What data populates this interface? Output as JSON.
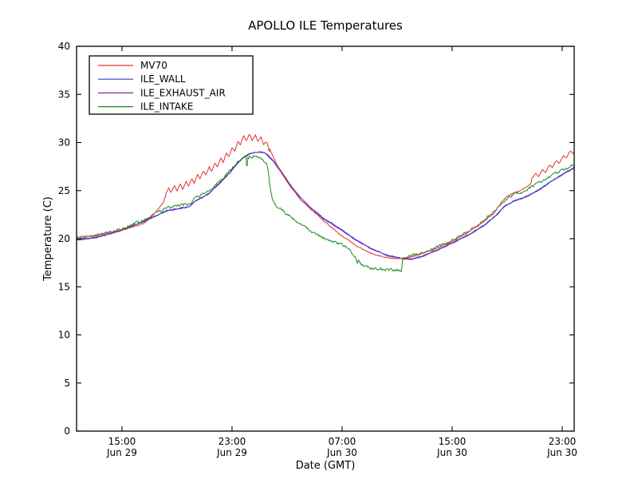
{
  "chart_data": {
    "type": "line",
    "title": "APOLLO ILE Temperatures",
    "xlabel": "Date (GMT)",
    "ylabel": "Temperature (C)",
    "grid": false,
    "legend_position": "upper-left",
    "y_axis": {
      "lim": [
        0,
        40
      ],
      "ticks": [
        0,
        5,
        10,
        15,
        20,
        25,
        30,
        35,
        40
      ]
    },
    "x_axis": {
      "unit": "hours_since_jun29_0000_gmt",
      "lim": [
        11.7,
        47.87
      ],
      "ticks": [
        {
          "t": 15,
          "time": "15:00",
          "date": "Jun 29"
        },
        {
          "t": 23,
          "time": "23:00",
          "date": "Jun 29"
        },
        {
          "t": 31,
          "time": "07:00",
          "date": "Jun 30"
        },
        {
          "t": 39,
          "time": "15:00",
          "date": "Jun 30"
        },
        {
          "t": 47,
          "time": "23:00",
          "date": "Jun 30"
        }
      ]
    },
    "legend": [
      {
        "name": "MV70",
        "color": "#e03030"
      },
      {
        "name": "ILE_WALL",
        "color": "#3b3bdc"
      },
      {
        "name": "ILE_EXHAUST_AIR",
        "color": "#7a2e9a"
      },
      {
        "name": "ILE_INTAKE",
        "color": "#1f8a1f"
      }
    ],
    "series": [
      {
        "name": "MV70",
        "color": "#e03030",
        "z": 4,
        "noise": 0.05,
        "seed": 101,
        "sawtooth": [
          {
            "from": 18.15,
            "to": 25.75,
            "amp": 0.33,
            "period": 0.42
          },
          {
            "from": 44.78,
            "to": 47.87,
            "amp": 0.26,
            "period": 0.5
          }
        ],
        "keypoints": [
          [
            11.7,
            20.15
          ],
          [
            13.1,
            20.4
          ],
          [
            14.8,
            20.85
          ],
          [
            15.8,
            21.2
          ],
          [
            16.6,
            21.6
          ],
          [
            17.1,
            22.2
          ],
          [
            17.7,
            23.2
          ],
          [
            18.05,
            23.9
          ],
          [
            18.2,
            24.9
          ],
          [
            19.3,
            25.4
          ],
          [
            20.0,
            25.9
          ],
          [
            21.0,
            26.8
          ],
          [
            21.9,
            27.7
          ],
          [
            22.6,
            28.6
          ],
          [
            23.1,
            29.3
          ],
          [
            23.5,
            29.9
          ],
          [
            23.85,
            30.4
          ],
          [
            24.25,
            30.6
          ],
          [
            24.7,
            30.5
          ],
          [
            25.1,
            30.3
          ],
          [
            25.45,
            29.9
          ],
          [
            25.75,
            29.3
          ],
          [
            26.1,
            28.1
          ],
          [
            26.7,
            26.7
          ],
          [
            27.3,
            25.4
          ],
          [
            28.0,
            24.1
          ],
          [
            28.9,
            22.9
          ],
          [
            29.8,
            21.7
          ],
          [
            30.9,
            20.4
          ],
          [
            31.9,
            19.4
          ],
          [
            32.9,
            18.6
          ],
          [
            33.7,
            18.2
          ],
          [
            34.5,
            18.0
          ],
          [
            35.3,
            17.95
          ],
          [
            35.8,
            18.05
          ],
          [
            36.6,
            18.35
          ],
          [
            37.5,
            18.8
          ],
          [
            38.5,
            19.4
          ],
          [
            39.4,
            20.0
          ],
          [
            40.3,
            20.8
          ],
          [
            41.2,
            21.7
          ],
          [
            42.0,
            22.6
          ],
          [
            42.6,
            23.8
          ],
          [
            43.0,
            24.4
          ],
          [
            43.6,
            24.8
          ],
          [
            44.2,
            25.2
          ],
          [
            44.55,
            25.55
          ],
          [
            44.74,
            25.7
          ],
          [
            44.8,
            26.45
          ],
          [
            45.2,
            26.65
          ],
          [
            45.8,
            27.15
          ],
          [
            46.4,
            27.75
          ],
          [
            47.0,
            28.3
          ],
          [
            47.5,
            28.8
          ],
          [
            47.87,
            29.2
          ]
        ]
      },
      {
        "name": "ILE_WALL",
        "color": "#3b3bdc",
        "z": 2,
        "noise": 0.03,
        "seed": 202,
        "sawtooth": [],
        "keypoints": [
          [
            11.7,
            19.9
          ],
          [
            13.1,
            20.15
          ],
          [
            14.8,
            20.8
          ],
          [
            16.6,
            21.85
          ],
          [
            18.3,
            22.95
          ],
          [
            19.0,
            23.1
          ],
          [
            19.9,
            23.35
          ],
          [
            20.3,
            23.9
          ],
          [
            21.3,
            24.7
          ],
          [
            22.1,
            25.8
          ],
          [
            22.85,
            26.9
          ],
          [
            23.4,
            27.9
          ],
          [
            23.85,
            28.5
          ],
          [
            24.25,
            28.85
          ],
          [
            24.7,
            29.0
          ],
          [
            25.1,
            29.05
          ],
          [
            25.45,
            28.9
          ],
          [
            25.95,
            28.2
          ],
          [
            26.55,
            27.1
          ],
          [
            27.15,
            25.8
          ],
          [
            27.9,
            24.4
          ],
          [
            28.75,
            23.2
          ],
          [
            29.6,
            22.2
          ],
          [
            30.8,
            21.1
          ],
          [
            31.9,
            20.0
          ],
          [
            33.1,
            19.0
          ],
          [
            34.25,
            18.3
          ],
          [
            35.4,
            17.95
          ],
          [
            36.1,
            17.9
          ],
          [
            36.9,
            18.25
          ],
          [
            38.1,
            18.95
          ],
          [
            39.25,
            19.75
          ],
          [
            40.4,
            20.6
          ],
          [
            41.4,
            21.5
          ],
          [
            42.3,
            22.6
          ],
          [
            42.8,
            23.4
          ],
          [
            43.5,
            23.95
          ],
          [
            44.1,
            24.25
          ],
          [
            44.6,
            24.55
          ],
          [
            45.3,
            25.1
          ],
          [
            46.15,
            25.95
          ],
          [
            47.0,
            26.7
          ],
          [
            47.87,
            27.4
          ]
        ]
      },
      {
        "name": "ILE_EXHAUST_AIR",
        "color": "#7a2e9a",
        "z": 1,
        "noise": 0.03,
        "seed": 303,
        "sawtooth": [],
        "keypoints": [
          [
            11.7,
            19.84
          ],
          [
            13.1,
            20.09
          ],
          [
            14.8,
            20.74
          ],
          [
            16.6,
            21.79
          ],
          [
            18.3,
            22.89
          ],
          [
            19.9,
            23.29
          ],
          [
            20.3,
            23.84
          ],
          [
            21.3,
            24.64
          ],
          [
            22.1,
            25.74
          ],
          [
            22.85,
            26.84
          ],
          [
            23.4,
            27.84
          ],
          [
            23.85,
            28.44
          ],
          [
            24.25,
            28.79
          ],
          [
            24.7,
            28.94
          ],
          [
            25.1,
            28.99
          ],
          [
            25.45,
            28.84
          ],
          [
            25.95,
            28.12
          ],
          [
            26.55,
            26.95
          ],
          [
            27.15,
            25.62
          ],
          [
            27.9,
            24.22
          ],
          [
            28.75,
            23.05
          ],
          [
            29.6,
            22.1
          ],
          [
            30.8,
            21.02
          ],
          [
            31.9,
            19.93
          ],
          [
            33.1,
            18.94
          ],
          [
            34.25,
            18.24
          ],
          [
            35.4,
            17.89
          ],
          [
            36.1,
            17.84
          ],
          [
            36.9,
            18.19
          ],
          [
            38.1,
            18.89
          ],
          [
            39.25,
            19.69
          ],
          [
            40.4,
            20.54
          ],
          [
            41.4,
            21.44
          ],
          [
            42.3,
            22.54
          ],
          [
            42.8,
            23.34
          ],
          [
            43.5,
            23.89
          ],
          [
            44.1,
            24.19
          ],
          [
            44.6,
            24.49
          ],
          [
            45.3,
            25.04
          ],
          [
            46.15,
            25.89
          ],
          [
            47.0,
            26.64
          ],
          [
            47.87,
            27.34
          ]
        ]
      },
      {
        "name": "ILE_INTAKE",
        "color": "#1f8a1f",
        "z": 3,
        "noise": 0.12,
        "seed": 404,
        "sawtooth": [],
        "keypoints": [
          [
            11.7,
            20.0
          ],
          [
            13.1,
            20.3
          ],
          [
            14.8,
            20.9
          ],
          [
            16.6,
            22.0
          ],
          [
            18.3,
            23.25
          ],
          [
            19.9,
            23.6
          ],
          [
            20.3,
            24.15
          ],
          [
            21.3,
            24.9
          ],
          [
            22.15,
            26.0
          ],
          [
            22.85,
            27.1
          ],
          [
            23.35,
            27.9
          ],
          [
            23.75,
            28.35
          ],
          [
            23.95,
            28.5
          ],
          [
            24.02,
            28.45
          ],
          [
            24.08,
            26.9
          ],
          [
            24.14,
            28.4
          ],
          [
            24.6,
            28.6
          ],
          [
            25.0,
            28.45
          ],
          [
            25.3,
            28.1
          ],
          [
            25.5,
            27.85
          ],
          [
            25.6,
            27.4
          ],
          [
            25.75,
            25.6
          ],
          [
            25.95,
            23.95
          ],
          [
            26.2,
            23.45
          ],
          [
            26.5,
            23.05
          ],
          [
            26.8,
            22.75
          ],
          [
            27.4,
            22.05
          ],
          [
            28.1,
            21.35
          ],
          [
            28.9,
            20.65
          ],
          [
            29.8,
            20.0
          ],
          [
            30.7,
            19.55
          ],
          [
            31.3,
            19.1
          ],
          [
            31.75,
            18.55
          ],
          [
            32.0,
            18.05
          ],
          [
            32.08,
            17.5
          ],
          [
            32.2,
            17.65
          ],
          [
            32.45,
            17.2
          ],
          [
            32.8,
            16.98
          ],
          [
            33.3,
            16.88
          ],
          [
            34.0,
            16.82
          ],
          [
            34.8,
            16.78
          ],
          [
            35.2,
            16.72
          ],
          [
            35.33,
            16.65
          ],
          [
            35.4,
            18.0
          ],
          [
            35.9,
            18.15
          ],
          [
            36.7,
            18.5
          ],
          [
            37.6,
            18.95
          ],
          [
            38.5,
            19.5
          ],
          [
            39.4,
            20.1
          ],
          [
            40.3,
            20.85
          ],
          [
            41.2,
            21.75
          ],
          [
            42.05,
            22.85
          ],
          [
            42.75,
            23.95
          ],
          [
            43.5,
            24.6
          ],
          [
            44.3,
            25.05
          ],
          [
            44.9,
            25.5
          ],
          [
            45.55,
            26.0
          ],
          [
            46.4,
            26.7
          ],
          [
            47.1,
            27.2
          ],
          [
            47.87,
            27.65
          ]
        ]
      }
    ]
  }
}
